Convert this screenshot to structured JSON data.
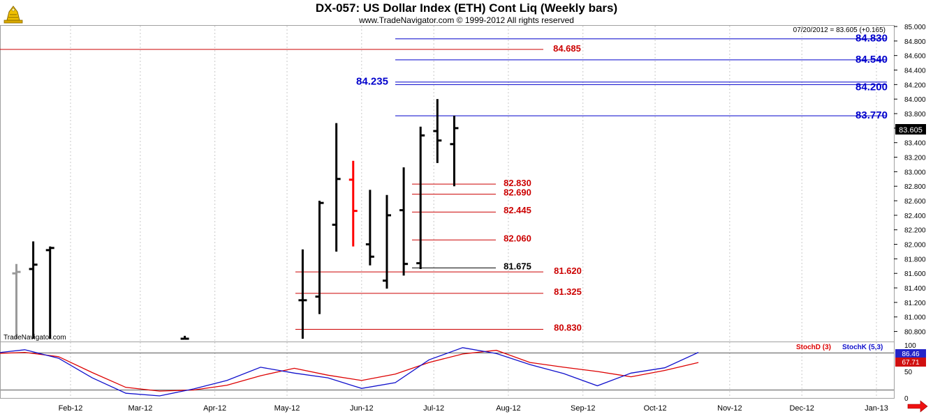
{
  "header": {
    "title": "DX-057:  US Dollar Index (ETH) Cont Liq  (Weekly bars)",
    "copyright": "www.TradeNavigator.com © 1999-2012 All rights reserved",
    "last_quote": "07/20/2012 = 83.605 (+0.165)",
    "watermark": "TradeNavigator.com"
  },
  "colors": {
    "blue_level": "#0000cc",
    "red_level": "#cc0000",
    "bar": "#000000",
    "bar_down": "#ff0000",
    "bar_gray": "#999999",
    "stoch_d": "#dd0000",
    "stoch_k": "#1010cc"
  },
  "chart_data": [
    {
      "type": "bar",
      "subtype": "ohlc",
      "title": "DX-057:  US Dollar Index (ETH) Cont Liq  (Weekly bars)",
      "x_ticks": [
        "Feb-12",
        "Mar-12",
        "Apr-12",
        "May-12",
        "Jun-12",
        "Jul-12",
        "Aug-12",
        "Sep-12",
        "Oct-12",
        "Nov-12",
        "Dec-12",
        "Jan-13"
      ],
      "ylim": [
        80.7,
        85.05
      ],
      "y_ticks": [
        "85.000",
        "84.800",
        "84.600",
        "84.400",
        "84.200",
        "84.000",
        "83.800",
        "83.600",
        "83.400",
        "83.200",
        "83.000",
        "82.800",
        "82.600",
        "82.400",
        "82.200",
        "82.000",
        "81.800",
        "81.600",
        "81.400",
        "81.200",
        "81.000",
        "80.800"
      ],
      "last_price_label": "83.605",
      "grid": true,
      "bars": [
        {
          "week": "2012-01-06",
          "open": 81.6,
          "high": 81.73,
          "low": 80.7,
          "close": 81.62
        },
        {
          "week": "2012-01-13",
          "open": 81.66,
          "high": 82.04,
          "low": 80.7,
          "close": 81.72
        },
        {
          "week": "2012-01-20",
          "open": 81.92,
          "high": 81.97,
          "low": 80.7,
          "close": 81.95
        },
        {
          "week": "2012-03-16",
          "open": 80.7,
          "high": 80.74,
          "low": 80.7,
          "close": 80.7
        },
        {
          "week": "2012-05-04",
          "open": 81.23,
          "high": 81.93,
          "low": 80.7,
          "close": 81.23
        },
        {
          "week": "2012-05-11",
          "open": 81.28,
          "high": 82.6,
          "low": 81.04,
          "close": 82.57
        },
        {
          "week": "2012-05-18",
          "open": 82.27,
          "high": 83.67,
          "low": 81.9,
          "close": 82.9
        },
        {
          "week": "2012-05-25",
          "open": 82.89,
          "high": 83.15,
          "low": 81.97,
          "close": 82.46
        },
        {
          "week": "2012-06-01",
          "open": 82.0,
          "high": 82.75,
          "low": 81.71,
          "close": 81.83
        },
        {
          "week": "2012-06-08",
          "open": 81.5,
          "high": 82.68,
          "low": 81.39,
          "close": 82.4
        },
        {
          "week": "2012-06-15",
          "open": 82.47,
          "high": 83.06,
          "low": 81.57,
          "close": 81.73
        },
        {
          "week": "2012-06-22",
          "open": 81.74,
          "high": 83.62,
          "low": 81.66,
          "close": 83.5
        },
        {
          "week": "2012-06-29",
          "open": 83.56,
          "high": 84.0,
          "low": 83.12,
          "close": 83.43
        },
        {
          "week": "2012-07-06",
          "open": 83.38,
          "high": 83.77,
          "low": 82.8,
          "close": 83.6
        }
      ],
      "levels": [
        {
          "value": 84.83,
          "label": "84.830",
          "color": "blue"
        },
        {
          "value": 84.685,
          "label": "84.685",
          "color": "red"
        },
        {
          "value": 84.54,
          "label": "84.540",
          "color": "blue"
        },
        {
          "value": 84.235,
          "label": "84.235",
          "color": "blue"
        },
        {
          "value": 84.2,
          "label": "84.200",
          "color": "blue"
        },
        {
          "value": 83.77,
          "label": "83.770",
          "color": "blue"
        },
        {
          "value": 82.83,
          "label": "82.830",
          "color": "red"
        },
        {
          "value": 82.69,
          "label": "82.690",
          "color": "red"
        },
        {
          "value": 82.445,
          "label": "82.445",
          "color": "red"
        },
        {
          "value": 82.06,
          "label": "82.060",
          "color": "red"
        },
        {
          "value": 81.675,
          "label": "81.675",
          "color": "black"
        },
        {
          "value": 81.62,
          "label": "81.620",
          "color": "red"
        },
        {
          "value": 81.325,
          "label": "81.325",
          "color": "red"
        },
        {
          "value": 80.83,
          "label": "80.830",
          "color": "red"
        }
      ]
    },
    {
      "type": "line",
      "title": "",
      "ylim": [
        0,
        100
      ],
      "y_ticks": [
        "100",
        "50",
        "0"
      ],
      "reference_lines": [
        85,
        15
      ],
      "current_values": {
        "stoch_k": "86.46",
        "stoch_d": "67.71"
      },
      "series": [
        {
          "name": "StochD (3)",
          "values": [
            [
              "2012-01-01",
              84
            ],
            [
              "2012-01-13",
              86
            ],
            [
              "2012-01-27",
              78
            ],
            [
              "2012-02-10",
              48
            ],
            [
              "2012-02-24",
              20
            ],
            [
              "2012-03-09",
              13
            ],
            [
              "2012-03-23",
              15
            ],
            [
              "2012-04-06",
              24
            ],
            [
              "2012-04-20",
              42
            ],
            [
              "2012-05-04",
              56
            ],
            [
              "2012-05-18",
              43
            ],
            [
              "2012-06-01",
              33
            ],
            [
              "2012-06-15",
              45
            ],
            [
              "2012-06-29",
              67
            ],
            [
              "2012-07-13",
              83
            ],
            [
              "2012-07-27",
              90
            ],
            [
              "2012-08-10",
              67
            ],
            [
              "2012-08-24",
              58
            ],
            [
              "2012-09-07",
              50
            ],
            [
              "2012-09-21",
              40
            ],
            [
              "2012-10-05",
              52
            ],
            [
              "2012-10-19",
              67
            ]
          ]
        },
        {
          "name": "StochK (5,3)",
          "values": [
            [
              "2012-01-01",
              85
            ],
            [
              "2012-01-13",
              91
            ],
            [
              "2012-01-27",
              75
            ],
            [
              "2012-02-10",
              38
            ],
            [
              "2012-02-24",
              9
            ],
            [
              "2012-03-09",
              4
            ],
            [
              "2012-03-23",
              17
            ],
            [
              "2012-04-06",
              33
            ],
            [
              "2012-04-20",
              58
            ],
            [
              "2012-05-04",
              47
            ],
            [
              "2012-05-18",
              38
            ],
            [
              "2012-06-01",
              18
            ],
            [
              "2012-06-15",
              29
            ],
            [
              "2012-06-29",
              72
            ],
            [
              "2012-07-13",
              95
            ],
            [
              "2012-07-27",
              84
            ],
            [
              "2012-08-10",
              63
            ],
            [
              "2012-08-24",
              46
            ],
            [
              "2012-09-07",
              23
            ],
            [
              "2012-09-21",
              47
            ],
            [
              "2012-10-05",
              57
            ],
            [
              "2012-10-19",
              86
            ]
          ]
        }
      ]
    }
  ]
}
